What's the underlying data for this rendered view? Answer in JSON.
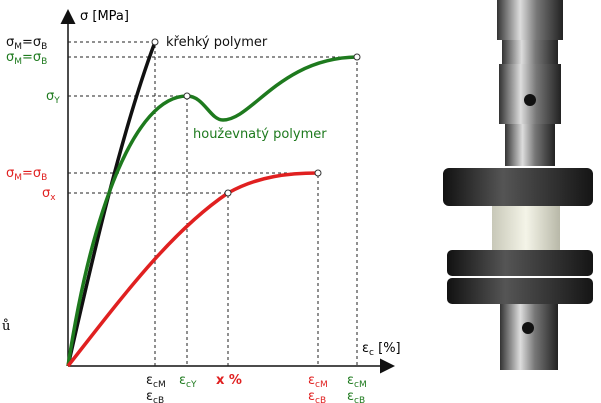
{
  "y_axis_label": "σ [MPa]",
  "x_axis_label": {
    "base": "ε",
    "sub": "c",
    "rest": " [%]"
  },
  "stray_char": "ů",
  "curve_labels": {
    "brittle": "křehký polymer",
    "ductile": "houževnatý polymer"
  },
  "y_labels": {
    "brittle_strength": [
      {
        "base": "σ",
        "sub": "M"
      },
      {
        "base": "=σ",
        "sub": "B"
      }
    ],
    "ductile_strength": [
      {
        "base": "σ",
        "sub": "M"
      },
      {
        "base": "=σ",
        "sub": "B"
      }
    ],
    "ductile_yield": {
      "base": "σ",
      "sub": "Y"
    },
    "third_strength": [
      {
        "base": "σ",
        "sub": "M"
      },
      {
        "base": "=σ",
        "sub": "B"
      }
    ],
    "third_x": {
      "base": "σ",
      "sub": "x"
    }
  },
  "x_labels": {
    "brittle": [
      {
        "base": "ε",
        "sub": "cM"
      },
      {
        "base": "ε",
        "sub": "cB"
      }
    ],
    "ductile_yield": {
      "base": "ε",
      "sub": "cY"
    },
    "x_percent": "x %",
    "third": [
      {
        "base": "ε",
        "sub": "cM"
      },
      {
        "base": "ε",
        "sub": "cB"
      }
    ],
    "ductile": [
      {
        "base": "ε",
        "sub": "cM"
      },
      {
        "base": "ε",
        "sub": "cB"
      }
    ]
  }
}
